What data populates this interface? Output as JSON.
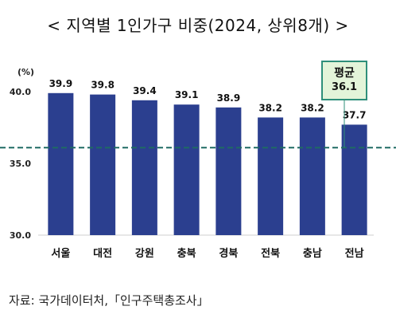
{
  "title": "< 지역별 1인가구 비중(2024, 상위8개) >",
  "unit": "(%)",
  "source": "자료: 국가데이터처,「인구주택총조사」",
  "average": {
    "label": "평균",
    "value": "36.1"
  },
  "colors": {
    "bar": "#2b3f8f",
    "avg_line": "#1f6b63",
    "avg_box_bg": "#e3f4d9",
    "avg_box_border": "#2f8f7a"
  },
  "chart_data": {
    "type": "bar",
    "categories": [
      "서울",
      "대전",
      "강원",
      "충북",
      "경북",
      "전북",
      "충남",
      "전남"
    ],
    "values": [
      39.9,
      39.8,
      39.4,
      39.1,
      38.9,
      38.2,
      38.2,
      37.7
    ],
    "value_labels": [
      "39.9",
      "39.8",
      "39.4",
      "39.1",
      "38.9",
      "38.2",
      "38.2",
      "37.7"
    ],
    "average": 36.1,
    "ylim": [
      30.0,
      40.0
    ],
    "yticks": [
      "30.0",
      "35.0",
      "40.0"
    ],
    "grid": false
  }
}
